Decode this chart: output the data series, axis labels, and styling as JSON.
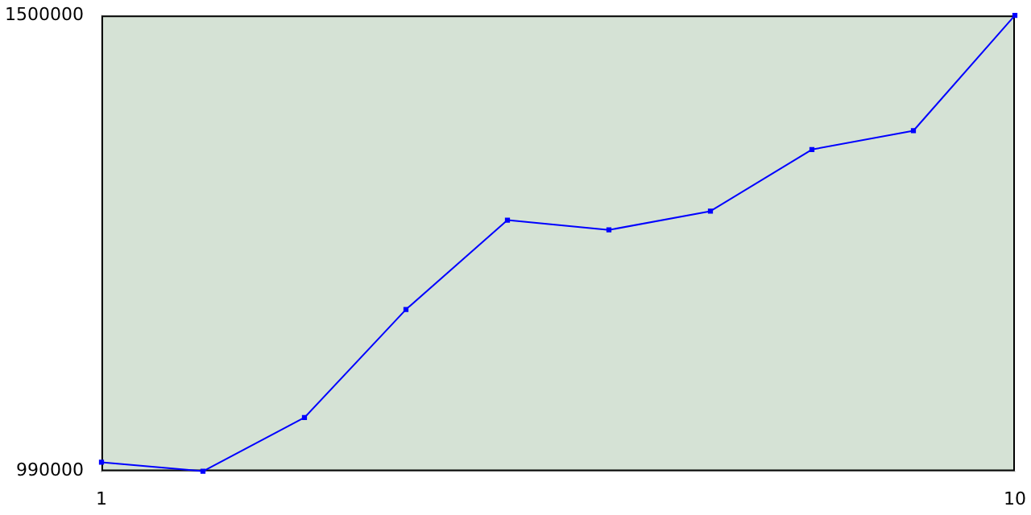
{
  "chart_data": {
    "type": "line",
    "x": [
      1,
      2,
      3,
      4,
      5,
      6,
      7,
      8,
      9,
      10
    ],
    "series": [
      {
        "color": "#0000ff",
        "values": [
          1000000,
          990000,
          1050000,
          1171000,
          1271000,
          1260000,
          1281000,
          1350000,
          1371000,
          1500000
        ]
      }
    ],
    "xlim": [
      1,
      10
    ],
    "xticks": [
      1,
      10
    ],
    "ylim": [
      990000,
      1500000
    ],
    "yticks": [
      990000,
      1500000
    ],
    "grid": false,
    "legend": false,
    "marker": "square",
    "line_style": "solid"
  }
}
